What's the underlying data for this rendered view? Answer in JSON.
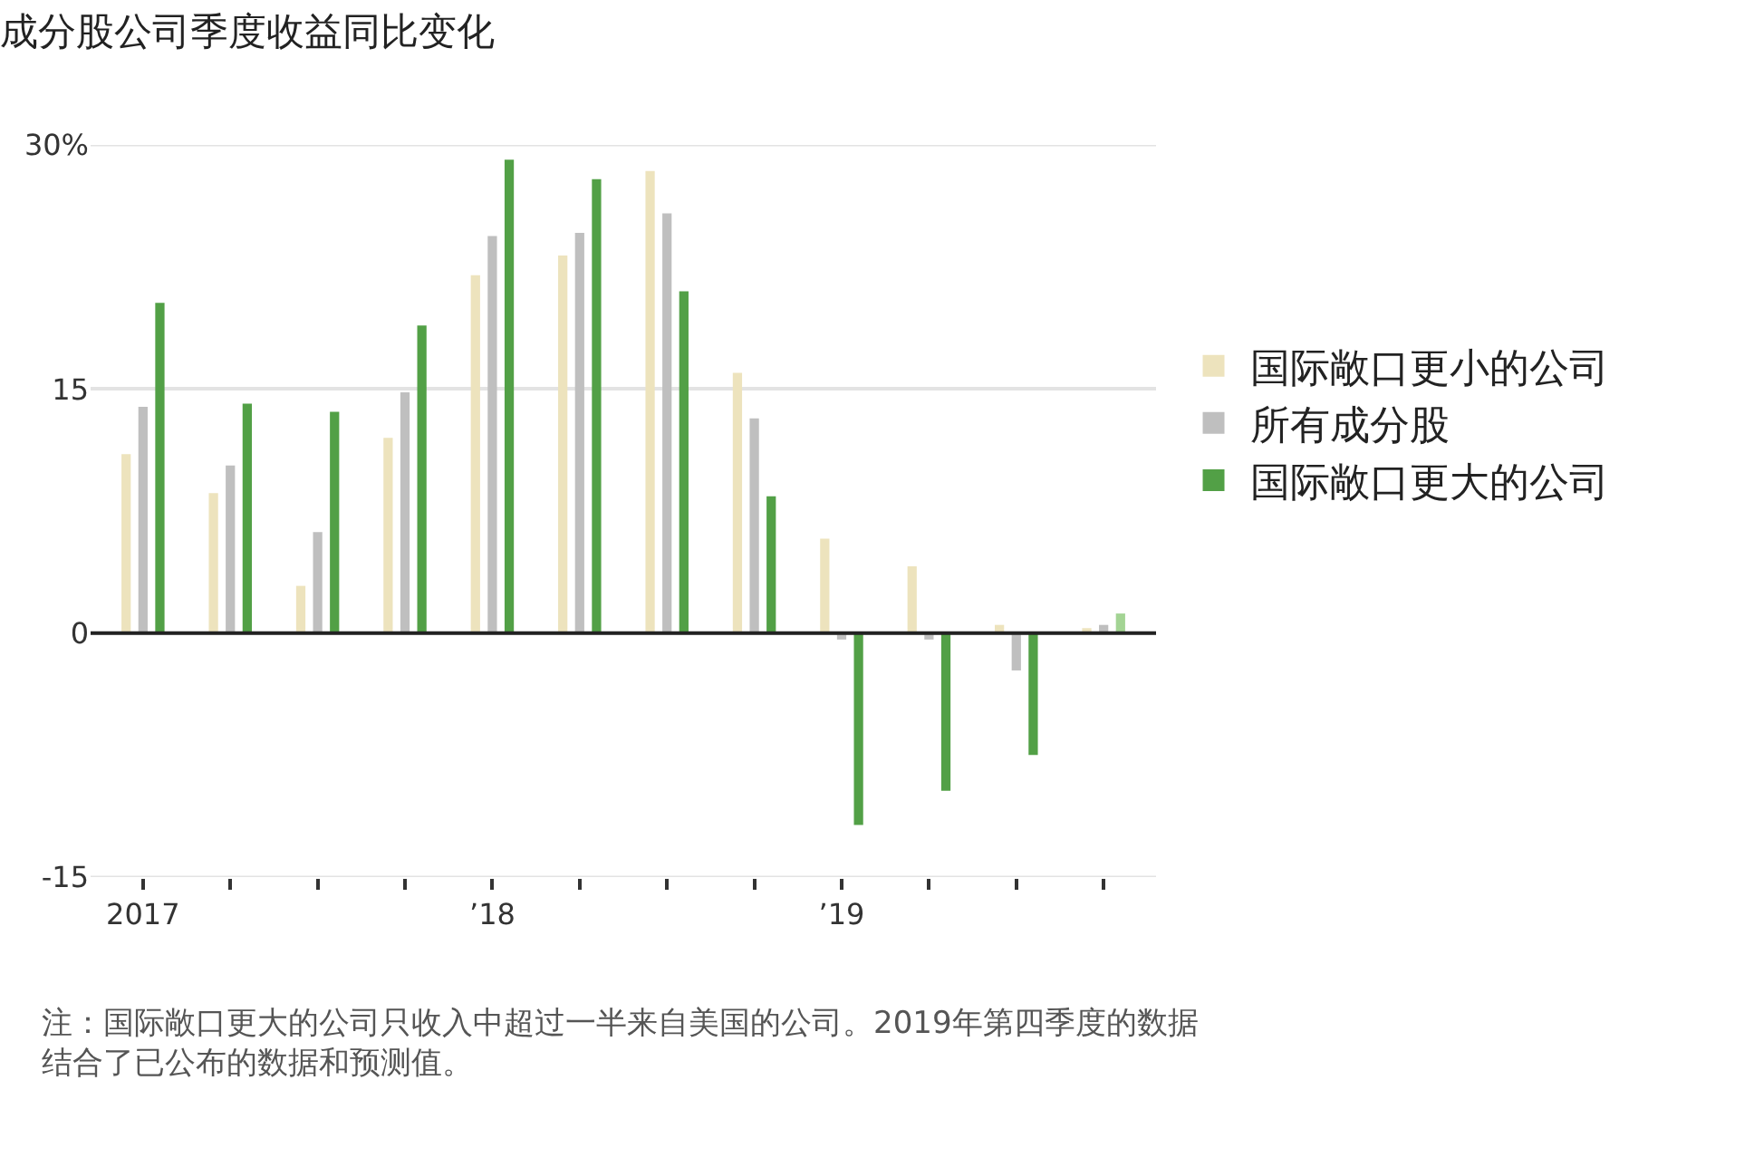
{
  "chart_data": {
    "type": "bar",
    "title": "成分股公司季度收益同比变化",
    "categories": [
      "2017",
      null,
      null,
      null,
      "’18",
      null,
      null,
      null,
      "’19",
      null,
      null,
      null
    ],
    "series": [
      {
        "name": "国际敞口更小的公司",
        "color": "#ede3bd",
        "values": [
          11.0,
          8.6,
          2.9,
          12.0,
          22.0,
          23.2,
          28.4,
          16.0,
          5.8,
          4.1,
          0.5,
          0.3
        ]
      },
      {
        "name": "所有成分股",
        "color": "#bfbfbf",
        "values": [
          13.9,
          10.3,
          6.2,
          14.8,
          24.4,
          24.6,
          25.8,
          13.2,
          -0.4,
          -0.4,
          -2.3,
          0.5
        ]
      },
      {
        "name": "国际敞口更大的公司",
        "color": "#52a046",
        "colors": [
          "#52a046",
          "#52a046",
          "#52a046",
          "#52a046",
          "#52a046",
          "#52a046",
          "#52a046",
          "#52a046",
          "#52a046",
          "#52a046",
          "#52a046",
          "#a3d494"
        ],
        "values": [
          20.3,
          14.1,
          13.6,
          18.9,
          29.1,
          27.9,
          21.0,
          8.4,
          -11.8,
          -9.7,
          -7.5,
          1.2
        ]
      }
    ],
    "ylim": [
      -15,
      30
    ],
    "yticks": [
      {
        "value": 30,
        "label": "30%"
      },
      15,
      0,
      -15
    ],
    "grid": "y",
    "legend": "right",
    "ref_lines": [
      {
        "axis": "y",
        "value": 0,
        "color": "#222222"
      }
    ],
    "annotations": [
      "注：国际敞口更大的公司只收入中超过一半来自美国的公司。2019年第四季度的数据结合了已公布的数据和预测值。"
    ]
  }
}
